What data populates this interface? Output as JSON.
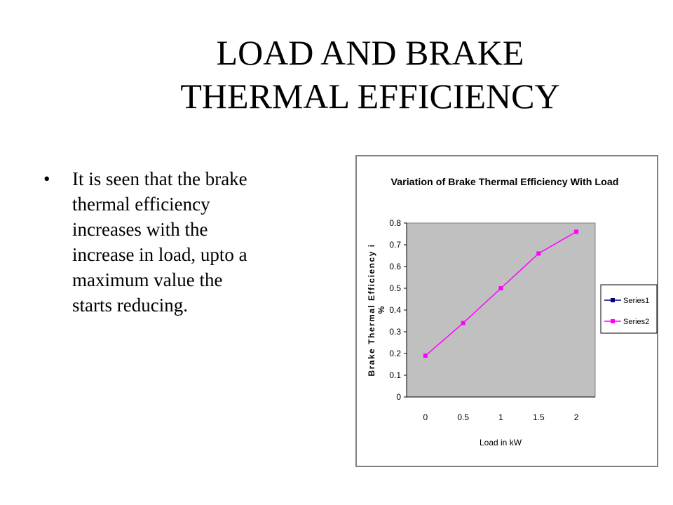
{
  "title": [
    "LOAD AND BRAKE",
    "THERMAL EFFICIENCY"
  ],
  "bullets": [
    [
      "It is seen that the brake",
      "thermal efficiency",
      "increases with the",
      "increase in load, upto a",
      "maximum value the",
      "starts reducing."
    ]
  ],
  "chart_data": {
    "type": "line",
    "title": "Variation of Brake Thermal Efficiency With Load",
    "xlabel": "Load in kW",
    "ylabel": [
      "Brake Thermal Efficiency i",
      "%"
    ],
    "categories": [
      "0",
      "0.5",
      "1",
      "1.5",
      "2"
    ],
    "series": [
      {
        "name": "Series1",
        "color": "#000080",
        "values": [
          null,
          null,
          null,
          null,
          null
        ]
      },
      {
        "name": "Series2",
        "color": "#ff00ff",
        "values": [
          0.19,
          0.34,
          0.5,
          0.66,
          0.76
        ]
      }
    ],
    "ylim": [
      0,
      0.8
    ],
    "yticks": [
      0,
      0.1,
      0.2,
      0.3,
      0.4,
      0.5,
      0.6,
      0.7,
      0.8
    ],
    "plot_background": "#c0c0c0",
    "legend": "right"
  }
}
